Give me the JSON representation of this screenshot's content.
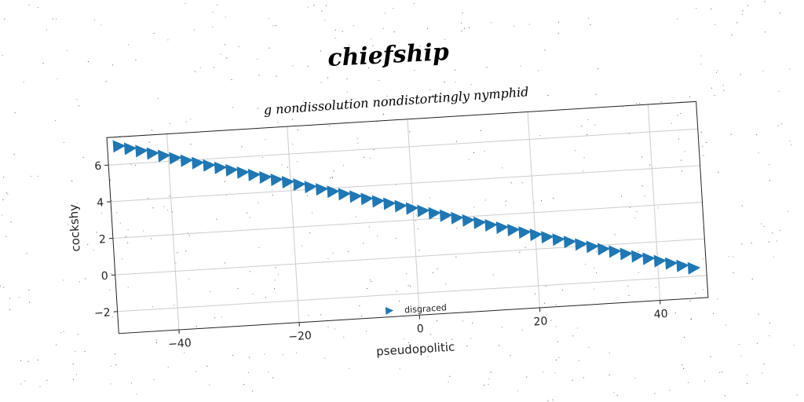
{
  "chart_data": {
    "type": "scatter",
    "title": "chiefship",
    "subtitle": "g nondissolution nondistortingly nymphid",
    "xlabel": "pseudopolitic",
    "ylabel": "cockshy",
    "xlim": [
      -50,
      48
    ],
    "ylim": [
      -3.2,
      7.5
    ],
    "x_ticks": [
      -40,
      -20,
      0,
      20,
      40
    ],
    "y_ticks": [
      -2,
      0,
      2,
      4,
      6
    ],
    "x_tick_labels": [
      "−40",
      "−20",
      "0",
      "20",
      "40"
    ],
    "y_tick_labels": [
      "−2",
      "0",
      "2",
      "4",
      "6"
    ],
    "grid": true,
    "legend_position": "bottom-center",
    "series": [
      {
        "name": "disgraced",
        "marker": "triangle-right",
        "color": "#1f77b4",
        "line": {
          "x_start": -48,
          "x_end": 46,
          "y_start": 7.0,
          "y_end": -1.55,
          "count": 52
        }
      }
    ]
  }
}
